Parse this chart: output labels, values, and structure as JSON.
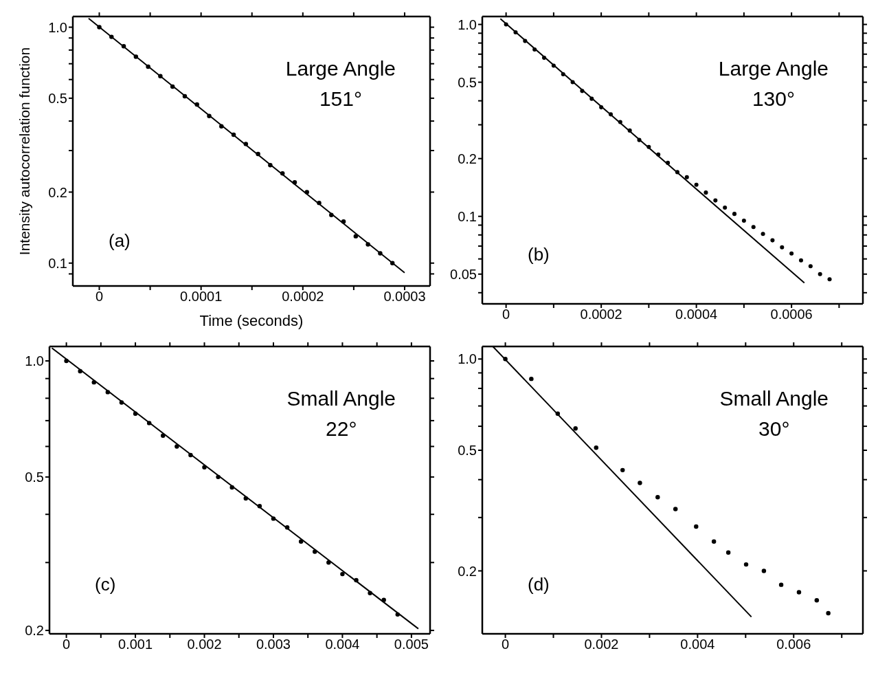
{
  "chart_data": [
    {
      "type": "scatter",
      "ylabel": "Intensity autocorrelation function",
      "xlabel": "Time (seconds)",
      "log": true,
      "annotations": [
        "Large Angle",
        "151°",
        "(a)"
      ],
      "xlim": [
        -2.6e-05,
        0.000325
      ],
      "xticks": [
        0,
        {
          "value": 5e-05,
          "label": null
        },
        0.0001,
        {
          "value": 0.00015,
          "label": null
        },
        0.0002,
        {
          "value": 0.00025,
          "label": null
        },
        0.0003
      ],
      "ylim": [
        0.08,
        1.11
      ],
      "yticks": [
        {
          "value": 0.09,
          "label": null
        },
        0.1,
        0.2,
        {
          "value": 0.3,
          "label": null
        },
        {
          "value": 0.4,
          "label": null
        },
        0.5,
        {
          "value": 0.6,
          "label": null
        },
        {
          "value": 0.7,
          "label": null
        },
        {
          "value": 0.8,
          "label": null
        },
        {
          "value": 0.9,
          "label": null
        },
        {
          "value": 1,
          "label": "1.0"
        }
      ],
      "series": [
        {
          "type": "scatter",
          "marker": "circle",
          "color": "#000000",
          "x": [
            0,
            1.2e-05,
            2.4e-05,
            3.6e-05,
            4.8e-05,
            6e-05,
            7.2e-05,
            8.4e-05,
            9.6e-05,
            0.000108,
            0.00012,
            0.000132,
            0.000144,
            0.000156,
            0.000168,
            0.00018,
            0.000192,
            0.000204,
            0.000216,
            0.000228,
            0.00024,
            0.000252,
            0.000264,
            0.000276,
            0.000288
          ],
          "values": [
            1.0,
            0.91,
            0.83,
            0.75,
            0.68,
            0.62,
            0.56,
            0.51,
            0.47,
            0.42,
            0.38,
            0.35,
            0.32,
            0.29,
            0.26,
            0.24,
            0.22,
            0.2,
            0.18,
            0.16,
            0.15,
            0.13,
            0.12,
            0.11,
            0.1
          ]
        },
        {
          "type": "line",
          "marker": "none",
          "color": "#000000",
          "x": [
            -1.05e-05,
            0.0003
          ],
          "values": [
            1.09,
            0.091
          ]
        }
      ]
    },
    {
      "type": "scatter",
      "log": true,
      "annotations": [
        "Large Angle",
        "130°",
        "(b)"
      ],
      "xlim": [
        -5e-05,
        0.00075
      ],
      "xticks": [
        0,
        {
          "value": 0.0001,
          "label": null
        },
        0.0002,
        {
          "value": 0.0003,
          "label": null
        },
        0.0004,
        {
          "value": 0.0005,
          "label": null
        },
        0.0006,
        {
          "value": 0.0007,
          "label": null
        }
      ],
      "ylim": [
        0.035,
        1.1
      ],
      "yticks": [
        {
          "value": 0.04,
          "label": null
        },
        0.05,
        {
          "value": 0.06,
          "label": null
        },
        {
          "value": 0.07,
          "label": null
        },
        {
          "value": 0.08,
          "label": null
        },
        {
          "value": 0.09,
          "label": null
        },
        0.1,
        0.2,
        {
          "value": 0.3,
          "label": null
        },
        {
          "value": 0.4,
          "label": null
        },
        0.5,
        {
          "value": 0.6,
          "label": null
        },
        {
          "value": 0.7,
          "label": null
        },
        {
          "value": 0.8,
          "label": null
        },
        {
          "value": 0.9,
          "label": null
        },
        {
          "value": 1,
          "label": "1.0"
        }
      ],
      "series": [
        {
          "type": "scatter",
          "marker": "circle",
          "color": "#000000",
          "x": [
            0,
            2e-05,
            4e-05,
            6e-05,
            8e-05,
            0.0001,
            0.00012,
            0.00014,
            0.00016,
            0.00018,
            0.0002,
            0.00022,
            0.00024,
            0.00026,
            0.00028,
            0.0003,
            0.00032,
            0.00034,
            0.00036,
            0.00038,
            0.0004,
            0.00042,
            0.00044,
            0.00046,
            0.00048,
            0.0005,
            0.00052,
            0.00054,
            0.00056,
            0.00058,
            0.0006,
            0.00062,
            0.00064,
            0.00066,
            0.00068
          ],
          "values": [
            1.0,
            0.91,
            0.82,
            0.74,
            0.67,
            0.61,
            0.55,
            0.5,
            0.45,
            0.41,
            0.37,
            0.34,
            0.31,
            0.28,
            0.25,
            0.23,
            0.21,
            0.19,
            0.17,
            0.16,
            0.146,
            0.133,
            0.121,
            0.111,
            0.103,
            0.095,
            0.088,
            0.081,
            0.075,
            0.069,
            0.064,
            0.059,
            0.055,
            0.05,
            0.047
          ]
        },
        {
          "type": "line",
          "marker": "none",
          "color": "#000000",
          "x": [
            -1.2e-05,
            0.000627
          ],
          "values": [
            1.07,
            0.045
          ]
        }
      ]
    },
    {
      "type": "scatter",
      "log": true,
      "annotations": [
        "Small Angle",
        "22°",
        "(c)"
      ],
      "xlim": [
        -0.000245,
        0.00527
      ],
      "xticks": [
        0,
        {
          "value": 0.0005,
          "label": null
        },
        0.001,
        {
          "value": 0.0015,
          "label": null
        },
        0.002,
        {
          "value": 0.0025,
          "label": null
        },
        0.003,
        {
          "value": 0.0035,
          "label": null
        },
        0.004,
        {
          "value": 0.0045,
          "label": null
        },
        0.005
      ],
      "ylim": [
        0.196,
        1.09
      ],
      "yticks": [
        0.2,
        {
          "value": 0.3,
          "label": null
        },
        {
          "value": 0.4,
          "label": null
        },
        0.5,
        {
          "value": 0.6,
          "label": null
        },
        {
          "value": 0.7,
          "label": null
        },
        {
          "value": 0.8,
          "label": null
        },
        {
          "value": 0.9,
          "label": null
        },
        {
          "value": 1,
          "label": "1.0"
        }
      ],
      "series": [
        {
          "type": "scatter",
          "marker": "circle",
          "color": "#000000",
          "x": [
            0,
            0.0002,
            0.0004,
            0.0006,
            0.0008,
            0.001,
            0.0012,
            0.0014,
            0.0016,
            0.0018,
            0.002,
            0.0022,
            0.0024,
            0.0026,
            0.0028,
            0.003,
            0.0032,
            0.0034,
            0.0036,
            0.0038,
            0.004,
            0.0042,
            0.0044,
            0.0046,
            0.0048
          ],
          "values": [
            1.0,
            0.94,
            0.88,
            0.83,
            0.78,
            0.73,
            0.69,
            0.64,
            0.6,
            0.57,
            0.53,
            0.5,
            0.47,
            0.44,
            0.42,
            0.39,
            0.37,
            0.34,
            0.32,
            0.3,
            0.28,
            0.27,
            0.25,
            0.24,
            0.22
          ]
        },
        {
          "type": "line",
          "marker": "none",
          "color": "#000000",
          "x": [
            -0.00021,
            0.0051
          ],
          "values": [
            1.08,
            0.202
          ]
        }
      ]
    },
    {
      "type": "scatter",
      "log": true,
      "annotations": [
        "Small Angle",
        "30°",
        "(d)"
      ],
      "xlim": [
        -0.00048,
        0.00744
      ],
      "xticks": [
        0,
        {
          "value": 0.001,
          "label": null
        },
        0.002,
        {
          "value": 0.003,
          "label": null
        },
        0.004,
        {
          "value": 0.005,
          "label": null
        },
        0.006,
        {
          "value": 0.007,
          "label": null
        }
      ],
      "ylim": [
        0.124,
        1.1
      ],
      "yticks": [
        0.2,
        {
          "value": 0.3,
          "label": null
        },
        {
          "value": 0.4,
          "label": null
        },
        0.5,
        {
          "value": 0.6,
          "label": null
        },
        {
          "value": 0.7,
          "label": null
        },
        {
          "value": 0.8,
          "label": null
        },
        {
          "value": 0.9,
          "label": null
        },
        {
          "value": 1,
          "label": "1.0"
        }
      ],
      "series": [
        {
          "type": "scatter",
          "marker": "circle",
          "color": "#000000",
          "x": [
            0,
            0.00054,
            0.00109,
            0.00146,
            0.00189,
            0.00244,
            0.0028,
            0.00317,
            0.00354,
            0.00397,
            0.00434,
            0.00464,
            0.00501,
            0.00538,
            0.00574,
            0.00611,
            0.00648,
            0.00672
          ],
          "values": [
            1.0,
            0.86,
            0.66,
            0.59,
            0.51,
            0.43,
            0.39,
            0.35,
            0.32,
            0.28,
            0.25,
            0.23,
            0.21,
            0.2,
            0.18,
            0.17,
            0.16,
            0.145
          ]
        },
        {
          "type": "line",
          "marker": "none",
          "color": "#000000",
          "x": [
            -0.00026,
            0.00512
          ],
          "values": [
            1.1,
            0.141
          ]
        }
      ]
    }
  ]
}
